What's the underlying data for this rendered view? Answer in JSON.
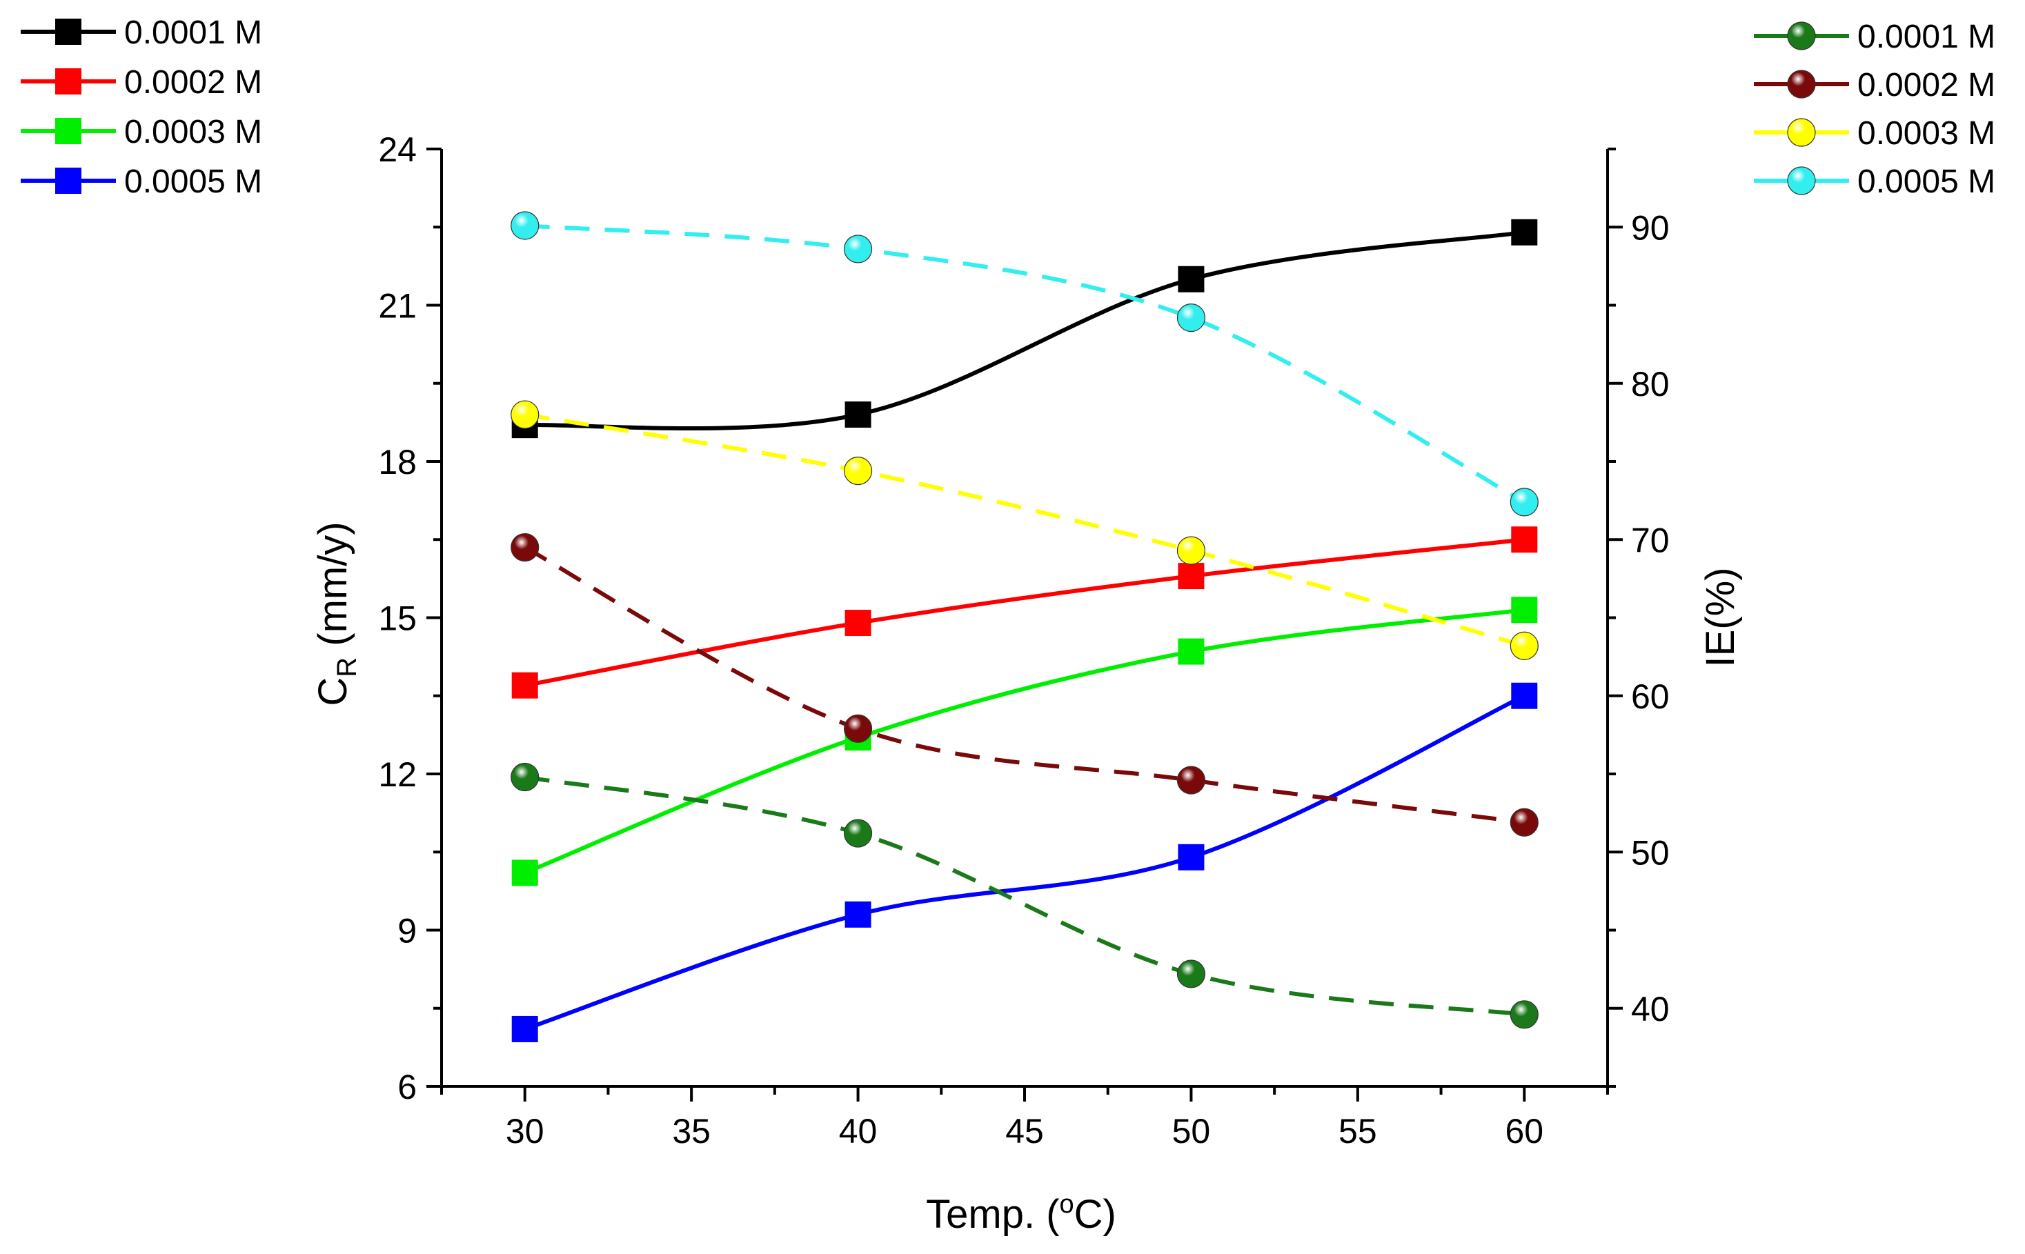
{
  "chart_data": {
    "type": "line",
    "x": [
      30,
      40,
      50,
      60
    ],
    "xlabel": {
      "main": "Temp. (",
      "sup": "o",
      "tail": "C)"
    },
    "ylabel_left": {
      "main": "C",
      "sub": "R",
      "tail": " (mm/y)"
    },
    "ylabel_right": "IE(%)",
    "xlim": [
      27.5,
      62.5
    ],
    "xticks": [
      30,
      35,
      40,
      45,
      50,
      55,
      60
    ],
    "ylim_left": [
      6,
      24
    ],
    "yticks_left": [
      6,
      9,
      12,
      15,
      18,
      21,
      24
    ],
    "ylim_right": [
      35,
      95
    ],
    "yticks_right": [
      40,
      50,
      60,
      70,
      80,
      90
    ],
    "grid": false,
    "series_left": [
      {
        "name": "0.0001 M",
        "color": "#000000",
        "marker": "square",
        "style": "solid",
        "values": [
          18.7,
          18.9,
          21.5,
          22.4
        ]
      },
      {
        "name": "0.0002 M",
        "color": "#ff0000",
        "marker": "square",
        "style": "solid",
        "values": [
          13.7,
          14.9,
          15.8,
          16.5
        ]
      },
      {
        "name": "0.0003 M",
        "color": "#00ee00",
        "marker": "square",
        "style": "solid",
        "values": [
          10.1,
          12.7,
          14.35,
          15.15
        ]
      },
      {
        "name": "0.0005 M",
        "color": "#0000ff",
        "marker": "square",
        "style": "solid",
        "values": [
          7.1,
          9.3,
          10.4,
          13.5
        ]
      }
    ],
    "series_right": [
      {
        "name": "0.0001 M",
        "color": "#1a7a1a",
        "marker": "sphere",
        "style": "dashed",
        "values": [
          54.8,
          51.2,
          42.2,
          39.6
        ]
      },
      {
        "name": "0.0002 M",
        "color": "#7a0a0a",
        "marker": "sphere",
        "style": "dashed",
        "values": [
          69.5,
          57.9,
          54.6,
          51.9
        ]
      },
      {
        "name": "0.0003 M",
        "color": "#ffff00",
        "marker": "sphere",
        "style": "dashed",
        "values": [
          78.0,
          74.4,
          69.3,
          63.2
        ]
      },
      {
        "name": "0.0005 M",
        "color": "#33eeee",
        "marker": "sphere",
        "style": "dashed",
        "values": [
          90.1,
          88.6,
          84.2,
          72.4
        ]
      }
    ],
    "legend_left_placement": "top-left",
    "legend_right_placement": "top-right"
  }
}
